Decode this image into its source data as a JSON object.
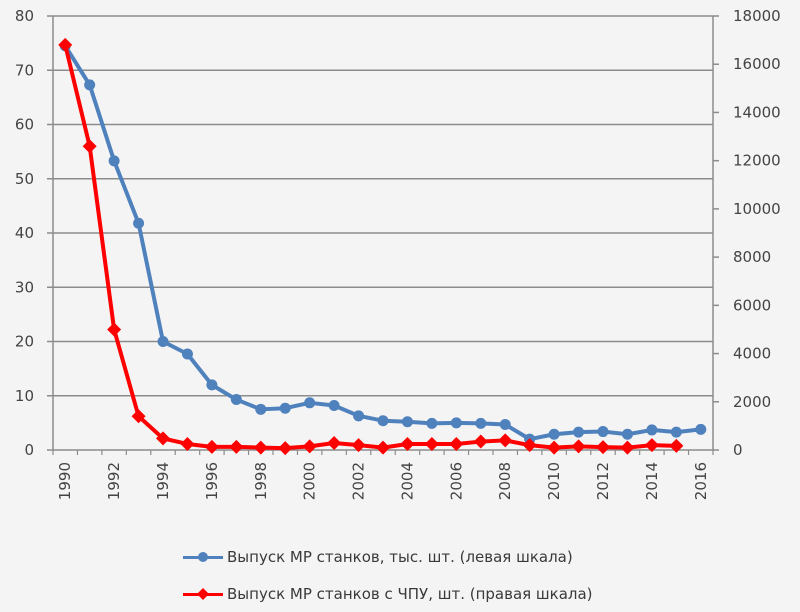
{
  "chart_data": {
    "type": "line",
    "title": "",
    "xlabel": "",
    "ylabel": "",
    "y2label": "",
    "x": [
      1990,
      1991,
      1992,
      1993,
      1994,
      1995,
      1996,
      1997,
      1998,
      1999,
      2000,
      2001,
      2002,
      2003,
      2004,
      2005,
      2006,
      2007,
      2008,
      2009,
      2010,
      2011,
      2012,
      2013,
      2014,
      2015,
      2016
    ],
    "x_tick_labels": [
      "1990",
      "1992",
      "1994",
      "1996",
      "1998",
      "2000",
      "2002",
      "2004",
      "2006",
      "2008",
      "2010",
      "2012",
      "2014",
      "2016"
    ],
    "ylim": [
      0,
      80
    ],
    "y_ticks": [
      "0",
      "10",
      "20",
      "30",
      "40",
      "50",
      "60",
      "70",
      "80"
    ],
    "y2lim": [
      0,
      18000
    ],
    "y2_ticks": [
      "0",
      "2000",
      "4000",
      "6000",
      "8000",
      "10000",
      "12000",
      "14000",
      "16000",
      "18000"
    ],
    "grid": true,
    "legend_position": "bottom",
    "series": [
      {
        "name": "Выпуск МР станков, тыс. шт. (левая шкала)",
        "axis": "left",
        "color": "#4f81bd",
        "marker": "circle",
        "values": [
          74.5,
          67.3,
          53.3,
          41.8,
          20.0,
          17.7,
          12.0,
          9.3,
          7.5,
          7.7,
          8.7,
          8.2,
          6.3,
          5.4,
          5.2,
          4.9,
          5.0,
          4.9,
          4.7,
          2.0,
          2.9,
          3.3,
          3.4,
          2.9,
          3.7,
          3.3,
          3.8
        ]
      },
      {
        "name": "Выпуск МР станков с ЧПУ, шт. (правая шкала)",
        "axis": "right",
        "color": "#ff0000",
        "marker": "diamond",
        "values": [
          16800,
          12600,
          5000,
          1400,
          480,
          250,
          130,
          130,
          100,
          80,
          150,
          290,
          200,
          100,
          250,
          250,
          250,
          350,
          400,
          200,
          100,
          150,
          120,
          100,
          200,
          170,
          null
        ]
      }
    ]
  }
}
